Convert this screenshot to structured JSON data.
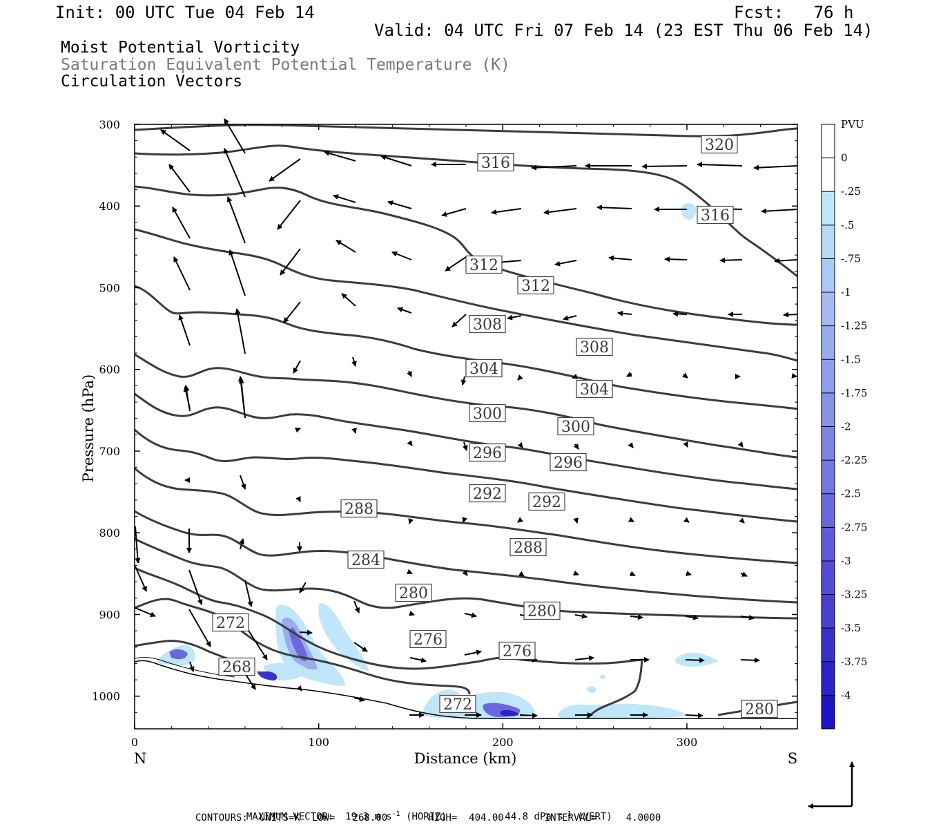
{
  "header": {
    "init": "Init: 00 UTC Tue 04 Feb 14",
    "fcst": "Fcst:   76 h",
    "valid": "Valid: 04 UTC Fri 07 Feb 14 (23 EST Thu 06 Feb 14)"
  },
  "fields": {
    "field1": "Moist Potential Vorticity",
    "field2": "Saturation Equivalent Potential Temperature (K)",
    "field3": "Circulation Vectors"
  },
  "footer": {
    "max_vector_label": "MAXIMUM VECTOR:",
    "max_vector_horiz": "19.3 m s",
    "horiz_tag": "(HORIZ)",
    "max_vector_vert": "44.8 dPa s",
    "vert_tag": "(VERT)",
    "superscript": "-1",
    "contours": "CONTOURS:  UNITS=K  LOW=   268.00       HIGH=  404.00       INTERVAL=     4.0000"
  },
  "chart_data": {
    "type": "cross-section",
    "xlabel": "Distance (km)",
    "ylabel": "Pressure (hPa)",
    "xlim": [
      0,
      360
    ],
    "ylim": [
      300,
      1040
    ],
    "x_ticks": [
      "0",
      "100",
      "200",
      "300"
    ],
    "x_tick_values": [
      0,
      100,
      200,
      300
    ],
    "y_ticks": [
      "300",
      "400",
      "500",
      "600",
      "700",
      "800",
      "900",
      "1000"
    ],
    "y_tick_values": [
      300,
      400,
      500,
      600,
      700,
      800,
      900,
      1000
    ],
    "left_end_label": "N",
    "right_end_label": "S",
    "colorbar": {
      "title": "PVU",
      "labels": [
        "0",
        "-.25",
        "-.5",
        "-.75",
        "-1",
        "-1.25",
        "-1.5",
        "-1.75",
        "-2",
        "-2.25",
        "-2.5",
        "-2.75",
        "-3",
        "-3.25",
        "-3.5",
        "-3.75",
        "-4"
      ],
      "colors": [
        "#ffffff",
        "#ffffff",
        "#bfe6fb",
        "#b5d9f7",
        "#abcaf3",
        "#a2bcf0",
        "#99adec",
        "#909fe9",
        "#8792e6",
        "#7d84e2",
        "#7477df",
        "#6a69dc",
        "#5f5bd8",
        "#544cd4",
        "#4740d0",
        "#3a31cc",
        "#2c22c8",
        "#1d13c4"
      ]
    },
    "contour_labels": [
      "320",
      "316",
      "316",
      "312",
      "312",
      "308",
      "308",
      "304",
      "304",
      "300",
      "300",
      "296",
      "296",
      "292",
      "292",
      "288",
      "288",
      "284",
      "280",
      "280",
      "276",
      "276",
      "272",
      "272",
      "268",
      "280"
    ]
  }
}
